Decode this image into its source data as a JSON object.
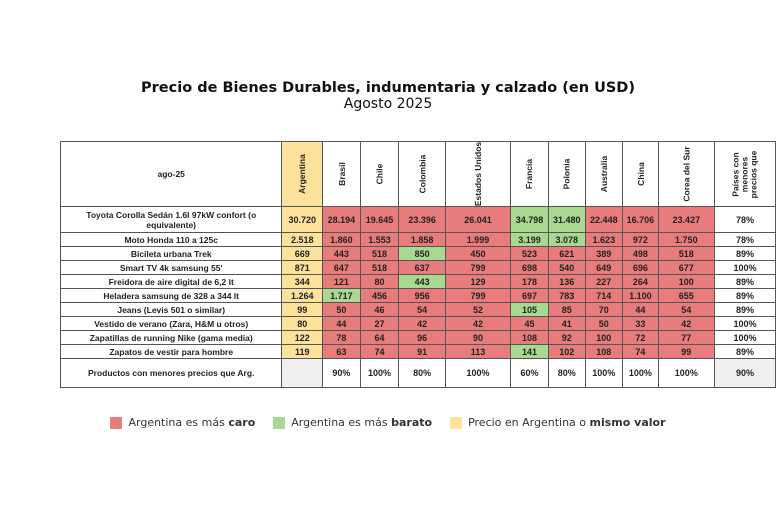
{
  "title": "Precio de Bienes Durables, indumentaria y calzado (en USD)",
  "subtitle": "Agosto 2025",
  "corner": "ago-25",
  "columns": [
    "Argentina",
    "Brasil",
    "Chile",
    "Colombia",
    "Estados Unidos",
    "Francia",
    "Polonia",
    "Australia",
    "China",
    "Corea del Sur"
  ],
  "last_column": "Países con menores precios que",
  "colors": {
    "caro": "#e87c7c",
    "barato": "#a9d890",
    "igual": "#fce29b"
  },
  "rows": [
    {
      "label": "Toyota Corolla Sedán 1.6l 97kW confort (o equivalente)",
      "values": [
        "30.720",
        "28.194",
        "19.645",
        "23.396",
        "26.041",
        "34.798",
        "31.480",
        "22.448",
        "16.706",
        "23.427"
      ],
      "green": [
        5,
        6
      ],
      "pct": "78%"
    },
    {
      "label": "Moto Honda 110 a 125c",
      "values": [
        "2.518",
        "1.860",
        "1.553",
        "1.858",
        "1.999",
        "3.199",
        "3.078",
        "1.623",
        "972",
        "1.750"
      ],
      "green": [
        5,
        6
      ],
      "pct": "78%"
    },
    {
      "label": "Bicileta urbana Trek",
      "values": [
        "669",
        "443",
        "518",
        "850",
        "450",
        "523",
        "621",
        "389",
        "498",
        "518"
      ],
      "green": [
        3
      ],
      "pct": "89%"
    },
    {
      "label": "Smart TV 4k samsung 55'",
      "values": [
        "871",
        "647",
        "518",
        "637",
        "799",
        "698",
        "540",
        "649",
        "696",
        "677"
      ],
      "green": [],
      "pct": "100%"
    },
    {
      "label": "Freidora de aire digital de 6,2 lt",
      "values": [
        "344",
        "121",
        "80",
        "443",
        "129",
        "178",
        "136",
        "227",
        "264",
        "100"
      ],
      "green": [
        3
      ],
      "pct": "89%"
    },
    {
      "label": "Heladera samsung de 328 a 344 lt",
      "values": [
        "1.264",
        "1.717",
        "456",
        "956",
        "799",
        "697",
        "783",
        "714",
        "1.100",
        "655"
      ],
      "green": [
        1
      ],
      "pct": "89%"
    },
    {
      "label": "Jeans (Levis 501 o similar)",
      "values": [
        "99",
        "50",
        "46",
        "54",
        "52",
        "105",
        "85",
        "70",
        "44",
        "54"
      ],
      "green": [
        5
      ],
      "pct": "89%"
    },
    {
      "label": "Vestido de verano (Zara, H&M u otros)",
      "values": [
        "80",
        "44",
        "27",
        "42",
        "42",
        "45",
        "41",
        "50",
        "33",
        "42"
      ],
      "green": [],
      "pct": "100%"
    },
    {
      "label": "Zapatillas de running Nike (gama media)",
      "values": [
        "122",
        "78",
        "64",
        "96",
        "90",
        "108",
        "92",
        "100",
        "72",
        "77"
      ],
      "green": [],
      "pct": "100%"
    },
    {
      "label": "Zapatos de vestir para hombre",
      "values": [
        "119",
        "63",
        "74",
        "91",
        "113",
        "141",
        "102",
        "108",
        "74",
        "99"
      ],
      "green": [
        5
      ],
      "pct": "89%"
    }
  ],
  "footer": {
    "label": "Productos con menores precios que Arg.",
    "values": [
      "",
      "90%",
      "100%",
      "80%",
      "100%",
      "60%",
      "80%",
      "100%",
      "100%",
      "100%"
    ],
    "total": "90%"
  },
  "legend": [
    {
      "pre": "Argentina es más ",
      "bold": "caro",
      "post": ""
    },
    {
      "pre": "Argentina es más ",
      "bold": "barato",
      "post": ""
    },
    {
      "pre": "Precio en Argentina o ",
      "bold": "mismo valor",
      "post": ""
    }
  ]
}
